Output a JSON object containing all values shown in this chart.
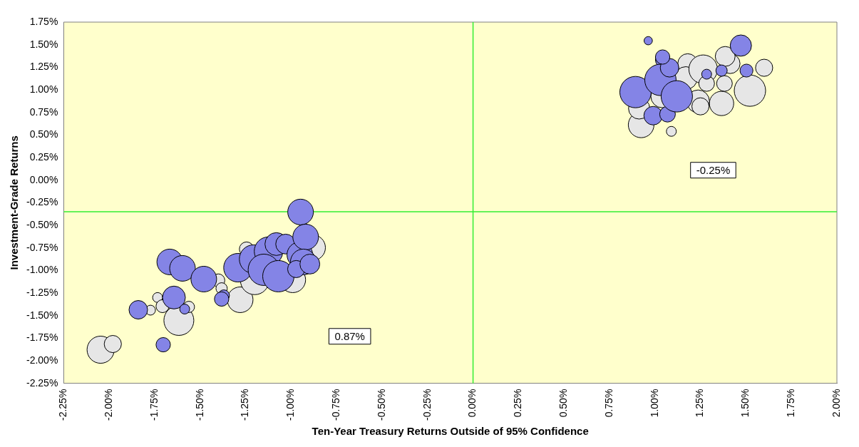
{
  "chart_data": {
    "type": "bubble",
    "xlabel": "Ten-Year Treasury Returns Outside of 95% Confidence",
    "ylabel": "Investment-Grade Returns",
    "xlim": [
      -2.25,
      2.0
    ],
    "xticks": [
      {
        "value": -2.25,
        "label": "-2.25%"
      },
      {
        "value": -2.0,
        "label": "-2.00%"
      },
      {
        "value": -1.75,
        "label": "-1.75%"
      },
      {
        "value": -1.5,
        "label": "-1.50%"
      },
      {
        "value": -1.25,
        "label": "-1.25%"
      },
      {
        "value": -1.0,
        "label": "-1.00%"
      },
      {
        "value": -0.75,
        "label": "-0.75%"
      },
      {
        "value": -0.5,
        "label": "-0.50%"
      },
      {
        "value": -0.25,
        "label": "-0.25%"
      },
      {
        "value": 0,
        "label": "0.00%"
      },
      {
        "value": 0.25,
        "label": "0.25%"
      },
      {
        "value": 0.5,
        "label": "0.50%"
      },
      {
        "value": 0.75,
        "label": "0.75%"
      },
      {
        "value": 1.0,
        "label": "1.00%"
      },
      {
        "value": 1.25,
        "label": "1.25%"
      },
      {
        "value": 1.5,
        "label": "1.50%"
      },
      {
        "value": 1.75,
        "label": "1.75%"
      },
      {
        "value": 2.0,
        "label": "2.00%"
      }
    ],
    "ylim": [
      -2.25,
      1.75
    ],
    "yticks": [
      {
        "value": -2.25,
        "label": "-2.25%"
      },
      {
        "value": -2.0,
        "label": "-2.00%"
      },
      {
        "value": -1.75,
        "label": "-1.75%"
      },
      {
        "value": -1.5,
        "label": "-1.50%"
      },
      {
        "value": -1.25,
        "label": "-1.25%"
      },
      {
        "value": -1.0,
        "label": "-1.00%"
      },
      {
        "value": -0.75,
        "label": "-0.75%"
      },
      {
        "value": -0.5,
        "label": "-0.50%"
      },
      {
        "value": -0.25,
        "label": "-0.25%"
      },
      {
        "value": 0,
        "label": "0.00%"
      },
      {
        "value": 0.25,
        "label": "0.25%"
      },
      {
        "value": 0.5,
        "label": "0.50%"
      },
      {
        "value": 0.75,
        "label": "0.75%"
      },
      {
        "value": 1.0,
        "label": "1.00%"
      },
      {
        "value": 1.25,
        "label": "1.25%"
      },
      {
        "value": 1.5,
        "label": "1.50%"
      },
      {
        "value": 1.75,
        "label": "1.75%"
      }
    ],
    "grid": false,
    "legend": false,
    "ref_lines": [
      {
        "axis": "x",
        "value": 0,
        "color": "#33ee33"
      },
      {
        "axis": "y",
        "value": -0.35,
        "color": "#33ee33"
      }
    ],
    "annotations": [
      "0.87%",
      "-0.25%"
    ],
    "series": [
      {
        "color": "#8484e6",
        "x": [
          -1.84,
          -1.644,
          -1.585,
          -1.703,
          -1.667,
          -1.597,
          -1.48,
          -1.37,
          -1.382,
          -1.292,
          -1.206,
          -1.124,
          -1.081,
          -1.15,
          -1.07,
          -1.03,
          -0.952,
          -0.948,
          -0.92,
          -0.933,
          -0.972,
          -0.897,
          0.963,
          1.042,
          0.893,
          0.99,
          1.03,
          1.069,
          1.08,
          1.042,
          1.12,
          1.284,
          1.366,
          1.472,
          1.503
        ],
        "values": [
          -1.436,
          -1.3,
          -1.428,
          -1.823,
          -0.906,
          -0.977,
          -1.096,
          -1.278,
          -1.317,
          -0.97,
          -0.875,
          -0.787,
          -0.708,
          -0.993,
          -1.064,
          -0.708,
          -0.827,
          -0.353,
          -0.63,
          -0.906,
          -0.985,
          -0.93,
          1.544,
          1.331,
          0.975,
          0.714,
          1.11,
          0.73,
          1.244,
          1.363,
          0.928,
          1.173,
          1.213,
          1.49,
          1.213
        ],
        "sizes": [
          0.35,
          0.53,
          0.1,
          0.21,
          0.67,
          0.67,
          0.67,
          0.13,
          0.21,
          0.83,
          0.83,
          0.83,
          0.53,
          1,
          1,
          0.4,
          0.67,
          0.67,
          0.67,
          0.67,
          0.3,
          0.4,
          0.07,
          0.21,
          1,
          0.35,
          1,
          0.25,
          0.35,
          0.21,
          1,
          0.1,
          0.13,
          0.46,
          0.17
        ]
      },
      {
        "color": "#e6e6e6",
        "x": [
          -2.047,
          -1.98,
          -1.773,
          -1.734,
          -1.707,
          -1.617,
          -1.562,
          -1.4,
          -1.382,
          -1.28,
          -1.2,
          -1.245,
          -0.991,
          -0.882,
          0.924,
          0.913,
          1.04,
          1.09,
          1.18,
          1.17,
          1.265,
          1.237,
          1.25,
          1.284,
          1.382,
          1.366,
          1.413,
          1.386,
          1.6,
          1.522
        ],
        "values": [
          -1.878,
          -1.815,
          -1.44,
          -1.3,
          -1.396,
          -1.554,
          -1.404,
          -1.11,
          -1.199,
          -1.325,
          -1.11,
          -0.764,
          -1.104,
          -0.748,
          0.612,
          0.794,
          0.928,
          0.54,
          1.29,
          1.13,
          1.228,
          0.872,
          0.817,
          1.07,
          1.07,
          0.849,
          1.29,
          1.37,
          1.244,
          0.991
        ],
        "sizes": [
          0.75,
          0.3,
          0.1,
          0.1,
          0.17,
          0.91,
          0.13,
          0.17,
          0.13,
          0.67,
          0.83,
          0.21,
          0.67,
          0.67,
          0.67,
          0.46,
          0.53,
          0.1,
          0.4,
          0.53,
          0.83,
          0.53,
          0.3,
          0.25,
          0.25,
          0.6,
          0.4,
          0.4,
          0.3,
          1
        ]
      }
    ]
  }
}
